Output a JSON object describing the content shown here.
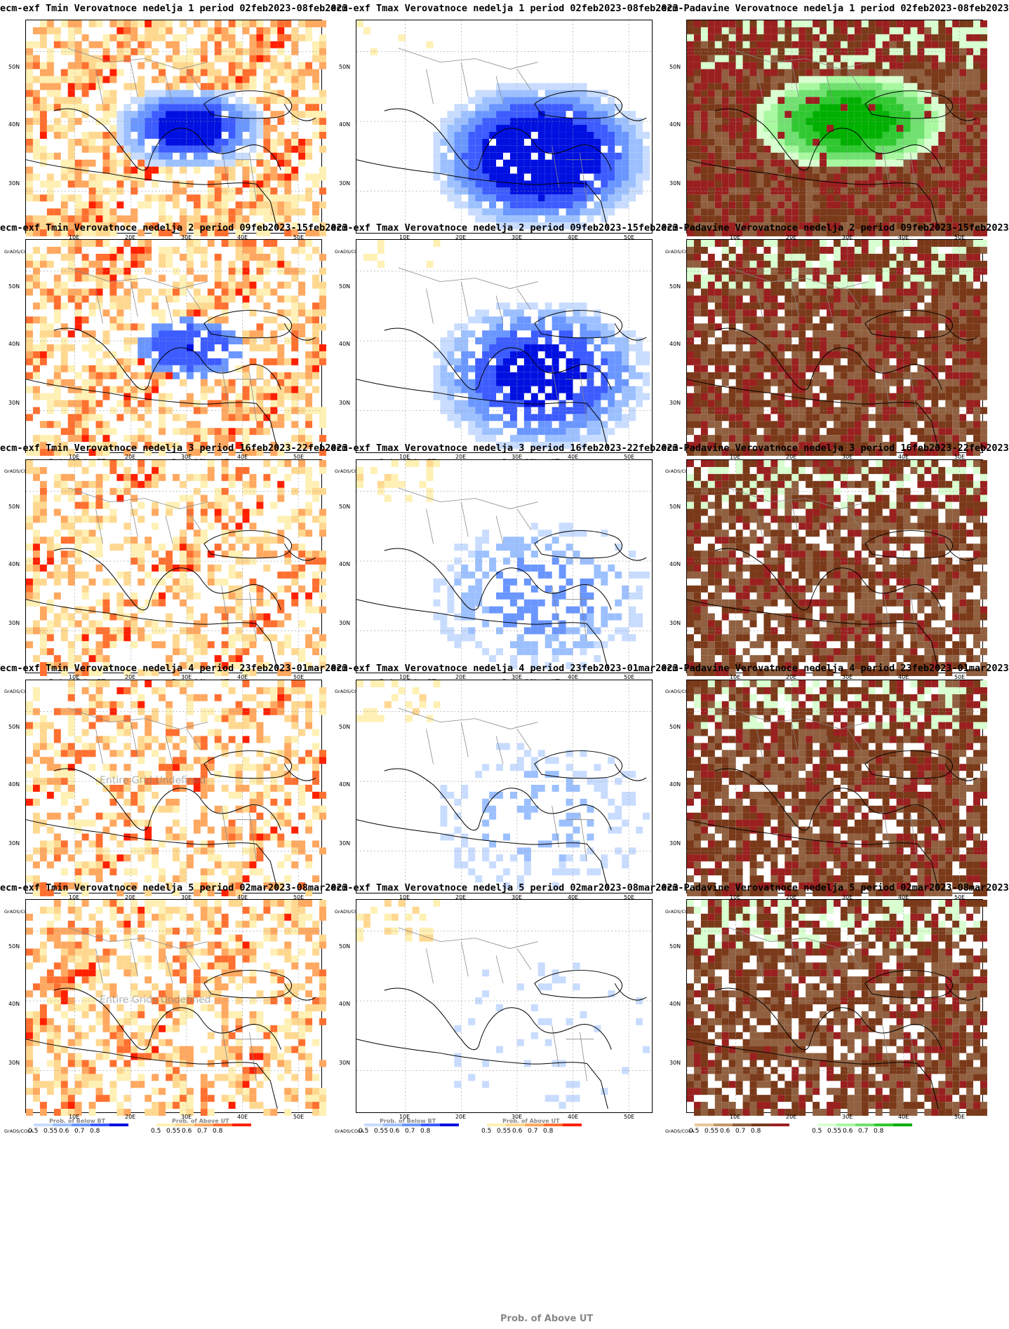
{
  "panels": [
    {
      "title": "ecm-exf Tmin Verovatnoce nedelja 1 period 02feb2023-08feb2023",
      "kind": "tmin",
      "intensity": 0.85,
      "watermark": ""
    },
    {
      "title": "ecm-exf Tmax Verovatnoce nedelja 1 period 02feb2023-08feb2023",
      "kind": "tmax",
      "intensity": 0.95,
      "watermark": ""
    },
    {
      "title": "ecm-Padavine Verovatnoce nedelja 1 period 02feb2023-08feb2023",
      "kind": "precip",
      "intensity": 0.9,
      "watermark": ""
    },
    {
      "title": "ecm-exf Tmin Verovatnoce nedelja 2 period 09feb2023-15feb2023",
      "kind": "tmin",
      "intensity": 0.75,
      "watermark": ""
    },
    {
      "title": "ecm-exf Tmax Verovatnoce nedelja 2 period 09feb2023-15feb2023",
      "kind": "tmax",
      "intensity": 0.8,
      "watermark": ""
    },
    {
      "title": "ecm-Padavine Verovatnoce nedelja 2 period 09feb2023-15feb2023",
      "kind": "precip",
      "intensity": 0.7,
      "watermark": ""
    },
    {
      "title": "ecm-exf Tmin Verovatnoce nedelja 3 period 16feb2023-22feb2023",
      "kind": "tmin",
      "intensity": 0.6,
      "watermark": ""
    },
    {
      "title": "ecm-exf Tmax Verovatnoce nedelja 3 period 16feb2023-22feb2023",
      "kind": "tmax",
      "intensity": 0.45,
      "watermark": ""
    },
    {
      "title": "ecm-Padavine Verovatnoce nedelja 3 period 16feb2023-22feb2023",
      "kind": "precip",
      "intensity": 0.6,
      "watermark": ""
    },
    {
      "title": "ecm-exf Tmin Verovatnoce nedelja 4 period 23feb2023-01mar2023",
      "kind": "tmin",
      "intensity": 0.6,
      "watermark": "Entire Grid Undefined"
    },
    {
      "title": "ecm-exf Tmax Verovatnoce nedelja 4 period 23feb2023-01mar2023",
      "kind": "tmax",
      "intensity": 0.25,
      "watermark": ""
    },
    {
      "title": "ecm-Padavine Verovatnoce nedelja 4 period 23feb2023-01mar2023",
      "kind": "precip",
      "intensity": 0.65,
      "watermark": ""
    },
    {
      "title": "ecm-exf Tmin Verovatnoce nedelja 5 period 02mar2023-08mar2023",
      "kind": "tmin",
      "intensity": 0.7,
      "watermark": "Entire Grids Undefined"
    },
    {
      "title": "ecm-exf Tmax Verovatnoce nedelja 5 period 02mar2023-08mar2023",
      "kind": "tmax",
      "intensity": 0.1,
      "watermark": ""
    },
    {
      "title": "ecm-Padavine Verovatnoce nedelja 5 period 02mar2023-08mar2023",
      "kind": "precip",
      "intensity": 0.6,
      "watermark": ""
    }
  ],
  "axes": {
    "lat_labels": [
      "50N",
      "40N",
      "30N"
    ],
    "lon_labels": [
      "10E",
      "20E",
      "30E",
      "40E",
      "50E"
    ]
  },
  "legend": {
    "grads": "GrADS/COLA",
    "values": [
      "0.5",
      "0.55",
      "0.6",
      "0.7",
      "0.8"
    ],
    "below_bt": "Prob. of Below BT",
    "above_ut": "Prob. of Above UT",
    "colors_blue": [
      "#c8dcff",
      "#9cc0ff",
      "#6a96ff",
      "#3c5cff",
      "#0010e0"
    ],
    "colors_orange": [
      "#fff0b4",
      "#ffd890",
      "#ffa860",
      "#ff7030",
      "#ff2000"
    ],
    "colors_brown": [
      "#e8c898",
      "#c09868",
      "#906040",
      "#7a3a1a",
      "#9a2020"
    ],
    "colors_green": [
      "#d8ffd0",
      "#a8f8a0",
      "#70e070",
      "#30c830",
      "#00b000"
    ]
  },
  "bottom_note": "Prob. of Above UT"
}
